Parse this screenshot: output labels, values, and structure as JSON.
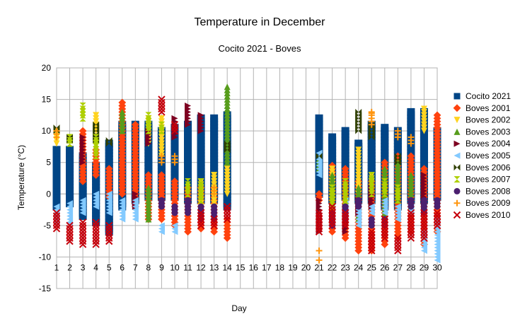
{
  "chart_data": {
    "type": "scatter",
    "title": "Temperature in December",
    "subtitle": "Cocito 2021 - Boves",
    "xlabel": "Day",
    "ylabel": "Temperature (°C)",
    "xlim": [
      1,
      30
    ],
    "ylim": [
      -15,
      20
    ],
    "y_ticks": [
      -15,
      -10,
      -5,
      0,
      5,
      10,
      15,
      20
    ],
    "x_ticks": [
      1,
      2,
      3,
      4,
      5,
      6,
      7,
      8,
      9,
      10,
      11,
      12,
      13,
      14,
      15,
      16,
      17,
      18,
      19,
      20,
      21,
      22,
      23,
      24,
      25,
      26,
      27,
      28,
      29,
      30
    ],
    "grid": true,
    "legend_position": "right",
    "series": [
      {
        "name": "Cocito 2021",
        "marker": "square",
        "color": "#004586",
        "ranges": [
          [
            1,
            -2,
            7
          ],
          [
            2,
            -1.5,
            7
          ],
          [
            3,
            -3.5,
            6
          ],
          [
            4,
            -4.5,
            4.5
          ],
          [
            5,
            -6,
            8
          ],
          [
            6,
            -2,
            11
          ],
          [
            7,
            -1,
            11
          ],
          [
            8,
            -0.5,
            11
          ],
          [
            9,
            -0.5,
            10
          ],
          [
            10,
            -0.5,
            10.5
          ],
          [
            11,
            -1,
            11
          ],
          [
            12,
            -1,
            12
          ],
          [
            13,
            -1,
            12
          ],
          [
            14,
            -2,
            12.5
          ],
          [
            21,
            0,
            12
          ],
          [
            22,
            -1,
            9
          ],
          [
            23,
            -0.5,
            10
          ],
          [
            24,
            -1,
            8
          ],
          [
            25,
            -1,
            11
          ],
          [
            26,
            -2,
            10.5
          ],
          [
            27,
            -2,
            10
          ],
          [
            28,
            -1,
            13
          ],
          [
            29,
            -1,
            13
          ],
          [
            30,
            -0.5,
            10
          ]
        ]
      },
      {
        "name": "Boves 2001",
        "marker": "diamond",
        "color": "#ff420e",
        "ranges": [
          [
            3,
            2,
            10
          ],
          [
            4,
            3,
            7
          ],
          [
            5,
            -0.5,
            4
          ],
          [
            6,
            0,
            14.5
          ],
          [
            7,
            -2,
            11
          ],
          [
            8,
            -4,
            3
          ],
          [
            9,
            -4,
            3
          ],
          [
            10,
            -5,
            2
          ],
          [
            11,
            -6,
            1
          ],
          [
            12,
            -5.5,
            1
          ],
          [
            13,
            -6,
            1
          ],
          [
            14,
            -7,
            -4
          ],
          [
            21,
            -1,
            0
          ],
          [
            22,
            -6,
            4.5
          ],
          [
            23,
            -7,
            4
          ],
          [
            24,
            -9,
            2
          ],
          [
            25,
            -9,
            2
          ],
          [
            26,
            -8,
            5
          ],
          [
            27,
            -7,
            6
          ],
          [
            28,
            -6,
            6
          ],
          [
            29,
            -8,
            4
          ],
          [
            30,
            -6,
            12.5
          ]
        ],
        "extra_points": [
          [
            30,
            11
          ]
        ]
      },
      {
        "name": "Boves 2002",
        "marker": "triangle-down",
        "color": "#ffd320",
        "ranges": [
          [
            1,
            8,
            10
          ],
          [
            4,
            10,
            12.5
          ],
          [
            8,
            8,
            12
          ],
          [
            9,
            6,
            12
          ],
          [
            12,
            -2,
            2
          ],
          [
            13,
            -2,
            3
          ],
          [
            14,
            0,
            4
          ],
          [
            22,
            -1,
            4
          ],
          [
            24,
            0,
            7
          ],
          [
            25,
            2,
            3
          ],
          [
            29,
            10,
            13.5
          ]
        ]
      },
      {
        "name": "Boves 2003",
        "marker": "triangle-up",
        "color": "#579d1c",
        "ranges": [
          [
            6,
            10,
            13
          ],
          [
            7,
            -2,
            -1.5
          ],
          [
            8,
            -4,
            1
          ],
          [
            14,
            5,
            17
          ],
          [
            21,
            4,
            5.5
          ],
          [
            22,
            -4,
            3
          ],
          [
            24,
            -4,
            1
          ],
          [
            26,
            -3,
            4
          ],
          [
            27,
            -1,
            5
          ],
          [
            28,
            -2,
            3
          ]
        ]
      },
      {
        "name": "Boves 2004",
        "marker": "triangle-right",
        "color": "#7e0021",
        "ranges": [
          [
            3,
            5,
            9
          ],
          [
            7,
            -2,
            0
          ],
          [
            8,
            8,
            10
          ],
          [
            10,
            9,
            12
          ],
          [
            11,
            11,
            14
          ],
          [
            12,
            10,
            12.5
          ],
          [
            21,
            -6,
            -1
          ],
          [
            22,
            -4,
            -2
          ],
          [
            23,
            -6,
            -2
          ],
          [
            24,
            -3,
            -1
          ],
          [
            25,
            -2,
            1
          ],
          [
            29,
            -3,
            3
          ]
        ]
      },
      {
        "name": "Boves 2005",
        "marker": "triangle-left",
        "color": "#83caff",
        "ranges": [
          [
            1,
            -4.5,
            -2
          ],
          [
            2,
            -4.5,
            -1.5
          ],
          [
            3,
            -3,
            -1
          ],
          [
            4,
            -2,
            0
          ],
          [
            5,
            -3,
            0
          ],
          [
            6,
            -4,
            -1
          ],
          [
            7,
            -4,
            -1
          ],
          [
            9,
            -6,
            -5
          ],
          [
            10,
            -6,
            -5
          ],
          [
            21,
            3,
            6.5
          ],
          [
            22,
            -5,
            -2
          ],
          [
            23,
            -4,
            -1
          ],
          [
            24,
            -5,
            -2
          ],
          [
            25,
            -3,
            -2
          ],
          [
            26,
            -3,
            -1
          ],
          [
            27,
            -4,
            -2
          ],
          [
            28,
            -3,
            -2
          ],
          [
            29,
            -9,
            -6
          ],
          [
            30,
            -10.5,
            -4
          ]
        ]
      },
      {
        "name": "Boves 2006",
        "marker": "bowtie",
        "color": "#314004",
        "ranges": [
          [
            1,
            10,
            10.5
          ],
          [
            2,
            8.5,
            9
          ],
          [
            4,
            8.5,
            11
          ],
          [
            5,
            8,
            8.5
          ],
          [
            14,
            7,
            8
          ],
          [
            21,
            6,
            6
          ],
          [
            24,
            10,
            13
          ],
          [
            25,
            9,
            11
          ],
          [
            27,
            5,
            6
          ]
        ]
      },
      {
        "name": "Boves 2007",
        "marker": "hourglass",
        "color": "#aecf00",
        "ranges": [
          [
            2,
            8,
            9
          ],
          [
            3,
            12,
            14
          ],
          [
            4,
            6,
            9
          ],
          [
            8,
            10,
            12.5
          ],
          [
            9,
            10,
            11
          ],
          [
            11,
            0,
            2
          ],
          [
            12,
            -1,
            2
          ],
          [
            22,
            -3,
            1
          ],
          [
            23,
            -2,
            2
          ],
          [
            25,
            0,
            3
          ],
          [
            26,
            0,
            2
          ],
          [
            27,
            -1,
            1
          ]
        ]
      },
      {
        "name": "Boves 2008",
        "marker": "circle",
        "color": "#4b1f6f",
        "ranges": [
          [
            9,
            -2,
            -1
          ],
          [
            10,
            -3,
            -2
          ],
          [
            11,
            -3,
            -1
          ],
          [
            12,
            -4,
            -2
          ],
          [
            13,
            -4,
            -2
          ],
          [
            22,
            -5,
            -3
          ],
          [
            23,
            -4,
            -2
          ],
          [
            24,
            -2,
            -1
          ],
          [
            25,
            -5,
            -4
          ],
          [
            26,
            -5,
            -4
          ],
          [
            28,
            -2,
            -1
          ],
          [
            29,
            -3,
            -1
          ],
          [
            30,
            -2,
            -1
          ]
        ]
      },
      {
        "name": "Boves 2009",
        "marker": "plus",
        "color": "#ff950e",
        "ranges": [
          [
            1,
            9,
            10
          ],
          [
            9,
            5,
            6
          ],
          [
            10,
            5,
            6
          ],
          [
            13,
            0,
            1
          ],
          [
            25,
            11,
            13
          ],
          [
            27,
            9,
            10
          ],
          [
            28,
            8,
            9
          ]
        ],
        "extra_points": [
          [
            21,
            -9
          ],
          [
            21,
            -10.5
          ],
          [
            25,
            12.8
          ]
        ]
      },
      {
        "name": "Boves 2010",
        "marker": "cross",
        "color": "#c5000b",
        "ranges": [
          [
            1,
            -5.5,
            -3
          ],
          [
            2,
            -7.5,
            -5
          ],
          [
            3,
            -8,
            -4.5
          ],
          [
            4,
            -8,
            -4.5
          ],
          [
            5,
            -7.5,
            -5
          ],
          [
            9,
            13,
            15
          ],
          [
            10,
            10,
            11
          ],
          [
            12,
            -5,
            -3
          ],
          [
            13,
            -5,
            -4
          ],
          [
            14,
            -4,
            -2
          ],
          [
            21,
            -6,
            -3
          ],
          [
            22,
            -5,
            -2
          ],
          [
            23,
            -5,
            -3
          ],
          [
            25,
            -9,
            -6
          ],
          [
            26,
            -7,
            -4
          ],
          [
            27,
            -9,
            -7
          ],
          [
            28,
            -7,
            -3
          ],
          [
            29,
            -7,
            -3
          ],
          [
            30,
            -5,
            -3
          ]
        ]
      }
    ]
  }
}
